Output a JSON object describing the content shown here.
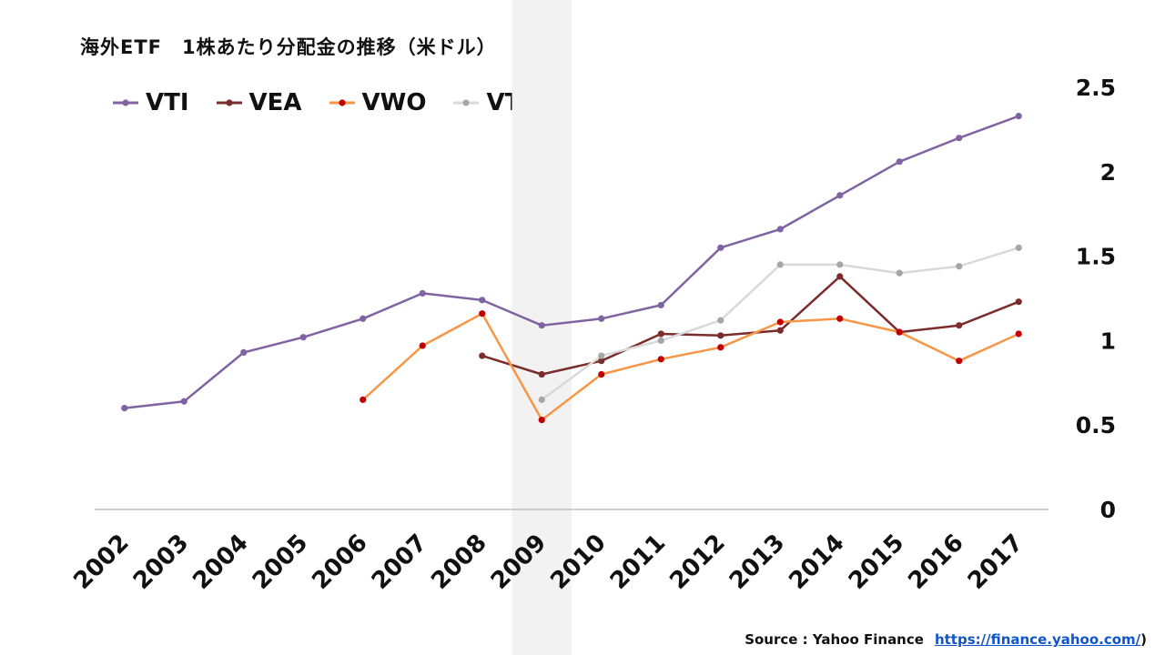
{
  "chart_data": {
    "type": "line",
    "title": "海外ETF　1株あたり分配金の推移（米ドル）",
    "x": [
      "2002",
      "2003",
      "2004",
      "2005",
      "2006",
      "2007",
      "2008",
      "2009",
      "2010",
      "2011",
      "2012",
      "2013",
      "2014",
      "2015",
      "2016",
      "2017"
    ],
    "yticks": [
      "0",
      "0.5",
      "1",
      "1.5",
      "2",
      "2.5"
    ],
    "ylim": [
      0,
      2.5
    ],
    "highlight_category": "2009",
    "legend_position": "top-left",
    "series": [
      {
        "name": "VTI",
        "color": "#8064a2",
        "marker": "#8064a2",
        "values": [
          0.6,
          0.64,
          0.93,
          1.02,
          1.13,
          1.28,
          1.24,
          1.09,
          1.13,
          1.21,
          1.55,
          1.66,
          1.86,
          2.06,
          2.2,
          2.33
        ]
      },
      {
        "name": "VEA",
        "color": "#7b2c2c",
        "marker": "#7b2c2c",
        "values": [
          null,
          null,
          null,
          null,
          null,
          null,
          0.91,
          0.8,
          0.88,
          1.04,
          1.03,
          1.06,
          1.38,
          1.05,
          1.09,
          1.23
        ]
      },
      {
        "name": "VWO",
        "color": "#f79646",
        "marker": "#c00000",
        "values": [
          null,
          null,
          null,
          null,
          0.65,
          0.97,
          1.16,
          0.53,
          0.8,
          0.89,
          0.96,
          1.11,
          1.13,
          1.05,
          0.88,
          1.04
        ]
      },
      {
        "name": "VT",
        "color": "#d9d9d9",
        "marker": "#a6a6a6",
        "values": [
          null,
          null,
          null,
          null,
          null,
          null,
          null,
          0.65,
          0.91,
          1.0,
          1.12,
          1.45,
          1.45,
          1.4,
          1.44,
          1.55
        ]
      }
    ]
  },
  "source": {
    "label": "Source :  Yahoo Finance",
    "link": "https://finance.yahoo.com/",
    "close_paren": ")"
  }
}
